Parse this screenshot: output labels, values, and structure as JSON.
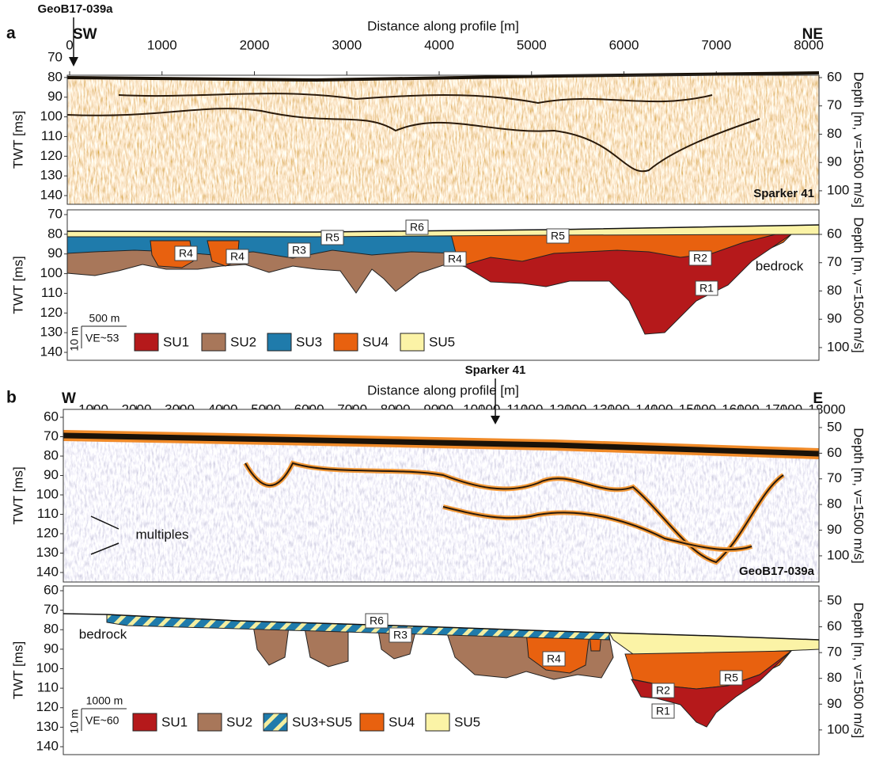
{
  "panel_a": {
    "label": "a",
    "well": "GeoB17-039a",
    "left_dir": "SW",
    "right_dir": "NE",
    "x_title": "Distance along profile [m]",
    "y_title": "TWT [ms]",
    "y2_title": "Depth [m, v=1500 m/s]",
    "xlim": [
      0,
      8000
    ],
    "xticks": [
      0,
      1000,
      2000,
      3000,
      4000,
      5000,
      6000,
      7000,
      8000
    ],
    "ylim": [
      70,
      140
    ],
    "yticks": [
      70,
      80,
      90,
      100,
      110,
      120,
      130,
      140
    ],
    "y2lim": [
      53,
      101.7
    ],
    "y2ticks": [
      60,
      70,
      80,
      90,
      100
    ],
    "seismic_label": "Sparker 41",
    "horizons": [
      "R6",
      "R5",
      "R3",
      "R4",
      "R4",
      "R4",
      "R5",
      "R2",
      "R1"
    ],
    "bedrock": "bedrock",
    "scale": {
      "length": "500 m",
      "height": "10 m",
      "ve": "VE~53"
    },
    "legend": [
      {
        "name": "SU1",
        "color": "#b5191b"
      },
      {
        "name": "SU2",
        "color": "#a8775a"
      },
      {
        "name": "SU3",
        "color": "#1f7bab"
      },
      {
        "name": "SU4",
        "color": "#e8610f"
      },
      {
        "name": "SU5",
        "color": "#fbf3a6"
      }
    ]
  },
  "panel_b": {
    "label": "b",
    "left_dir": "W",
    "right_dir": "E",
    "crossing": "Sparker 41",
    "x_title": "Distance along profile [m]",
    "y_title": "TWT [ms]",
    "y2_title": "Depth [m, v=1500 m/s]",
    "xlim": [
      1000,
      18000
    ],
    "xticks": [
      1000,
      2000,
      3000,
      4000,
      5000,
      6000,
      7000,
      8000,
      9000,
      10000,
      11000,
      12000,
      13000,
      14000,
      15000,
      16000,
      17000,
      18000
    ],
    "ylim": [
      60,
      140
    ],
    "yticks": [
      60,
      70,
      80,
      90,
      100,
      110,
      120,
      130,
      140
    ],
    "y2lim": [
      46,
      106.5
    ],
    "y2ticks": [
      50,
      60,
      70,
      80,
      90,
      100
    ],
    "seismic_label": "GeoB17-039a",
    "multiples": "multiples",
    "horizons": [
      "R6",
      "R3",
      "R4",
      "R2",
      "R5",
      "R1"
    ],
    "bedrock": "bedrock",
    "scale": {
      "length": "1000 m",
      "height": "10 m",
      "ve": "VE~60"
    },
    "legend": [
      {
        "name": "SU1",
        "color": "#b5191b"
      },
      {
        "name": "SU2",
        "color": "#a8775a"
      },
      {
        "name": "SU3+SU5",
        "color": "#1f7bab",
        "hatch": "#f3eea0"
      },
      {
        "name": "SU4",
        "color": "#e8610f"
      },
      {
        "name": "SU5",
        "color": "#fbf3a6"
      }
    ]
  }
}
